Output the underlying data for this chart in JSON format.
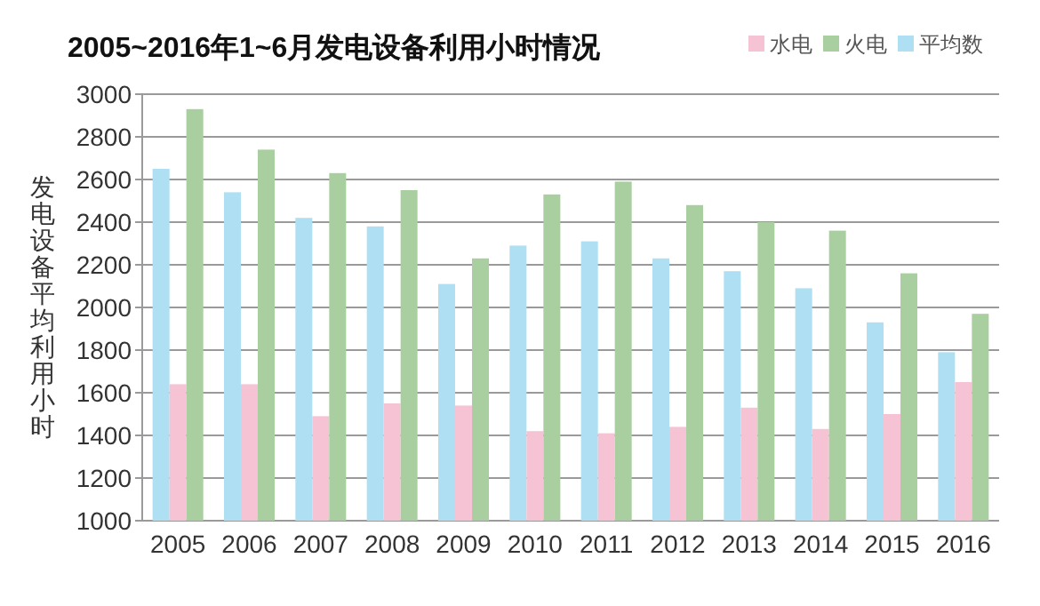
{
  "chart_data": {
    "type": "bar",
    "title": "2005~2016年1~6月发电设备利用小时情况",
    "ylabel": "发电设备平均利用小时",
    "categories": [
      "2005",
      "2006",
      "2007",
      "2008",
      "2009",
      "2010",
      "2011",
      "2012",
      "2013",
      "2014",
      "2015",
      "2016"
    ],
    "series": [
      {
        "name": "水电",
        "color": "#f5c3d4",
        "values": [
          1640,
          1640,
          1490,
          1550,
          1540,
          1420,
          1410,
          1440,
          1530,
          1430,
          1500,
          1650
        ]
      },
      {
        "name": "火电",
        "color": "#a9cfa0",
        "values": [
          2930,
          2740,
          2630,
          2550,
          2230,
          2530,
          2590,
          2480,
          2400,
          2360,
          2160,
          1970
        ]
      },
      {
        "name": "平均数",
        "color": "#afdff2",
        "values": [
          2650,
          2540,
          2420,
          2380,
          2110,
          2290,
          2310,
          2230,
          2170,
          2090,
          1930,
          1790
        ]
      }
    ],
    "ylim": [
      1000,
      3000
    ],
    "yticks": [
      1000,
      1200,
      1400,
      1600,
      1800,
      2000,
      2200,
      2400,
      2600,
      2800,
      3000
    ],
    "grid": "y",
    "legend": "top right"
  }
}
